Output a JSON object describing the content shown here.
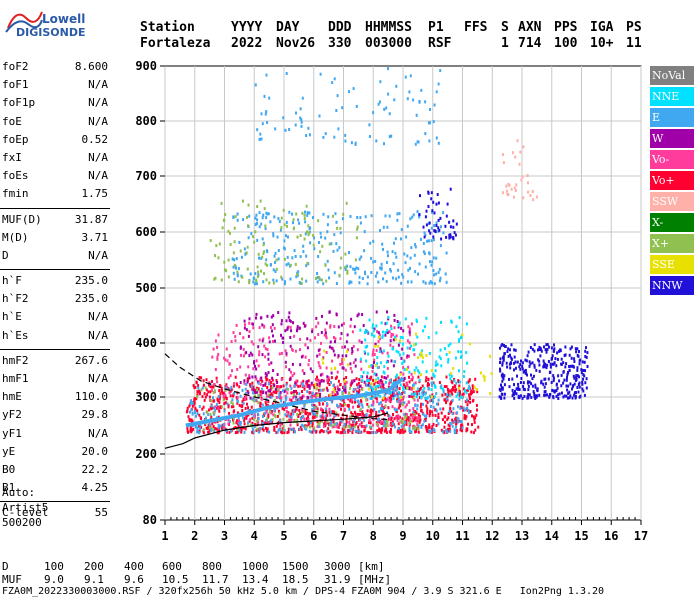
{
  "logo": {
    "line1": "Lowell",
    "line2": "DIGISONDE"
  },
  "header": {
    "labels": [
      "Station",
      "YYYY",
      "DAY",
      "DDD",
      "HHMMSS",
      "P1",
      "FFS",
      "S",
      "AXN",
      "PPS",
      "IGA",
      "PS"
    ],
    "values": [
      "Fortaleza",
      "2022",
      "Nov26",
      "330",
      "003000",
      "RSF",
      "",
      "1",
      "714",
      "100",
      "10+",
      "11"
    ]
  },
  "params": {
    "group1": [
      {
        "label": "foF2",
        "value": "8.600"
      },
      {
        "label": "foF1",
        "value": "N/A"
      },
      {
        "label": "foF1p",
        "value": "N/A"
      },
      {
        "label": "foE",
        "value": "N/A"
      },
      {
        "label": "foEp",
        "value": "0.52"
      },
      {
        "label": "fxI",
        "value": "N/A"
      },
      {
        "label": "foEs",
        "value": "N/A"
      },
      {
        "label": "fmin",
        "value": "1.75"
      }
    ],
    "group2": [
      {
        "label": "MUF(D)",
        "value": "31.87"
      },
      {
        "label": "M(D)",
        "value": "3.71"
      },
      {
        "label": "D",
        "value": "N/A"
      }
    ],
    "group3": [
      {
        "label": "h`F",
        "value": "235.0"
      },
      {
        "label": "h`F2",
        "value": "235.0"
      },
      {
        "label": "h`E",
        "value": "N/A"
      },
      {
        "label": "h`Es",
        "value": "N/A"
      }
    ],
    "group4": [
      {
        "label": "hmF2",
        "value": "267.6"
      },
      {
        "label": "hmF1",
        "value": "N/A"
      },
      {
        "label": "hmE",
        "value": "110.0"
      },
      {
        "label": "yF2",
        "value": "29.8"
      },
      {
        "label": "yF1",
        "value": "N/A"
      },
      {
        "label": "yE",
        "value": "20.0"
      },
      {
        "label": "B0",
        "value": "22.2"
      },
      {
        "label": "B1",
        "value": "4.25"
      }
    ],
    "group5": [
      {
        "label": "C-level",
        "value": "55"
      }
    ]
  },
  "auto": {
    "line1": "Auto:",
    "line2": "Artist5",
    "line3": "500200"
  },
  "legend": [
    {
      "label": "NoVal",
      "color": "#808080"
    },
    {
      "label": "NNE",
      "color": "#00e0ff"
    },
    {
      "label": "E",
      "color": "#40a8f0"
    },
    {
      "label": "W",
      "color": "#a000a8"
    },
    {
      "label": "Vo-",
      "color": "#ff3c9c"
    },
    {
      "label": "Vo+",
      "color": "#ff0030"
    },
    {
      "label": "SSW",
      "color": "#ffb0a8"
    },
    {
      "label": "X-",
      "color": "#008000"
    },
    {
      "label": "X+",
      "color": "#90c050"
    },
    {
      "label": "SSE",
      "color": "#e8e000"
    },
    {
      "label": "NNW",
      "color": "#2010d8"
    }
  ],
  "bottom": {
    "d_label": "D",
    "d_values": [
      "100",
      "200",
      "400",
      "600",
      "800",
      "1000",
      "1500",
      "3000"
    ],
    "d_unit": "[km]",
    "muf_label": "MUF",
    "muf_values": [
      "9.0",
      "9.1",
      "9.6",
      "10.5",
      "11.7",
      "13.4",
      "18.5",
      "31.9"
    ],
    "muf_unit": "[MHz]"
  },
  "footer": "FZA0M_2022330003000.RSF / 320fx256h 50 kHz 5.0 km / DPS-4 FZA0M 904 / 3.9 S 321.6 E   Ion2Png 1.3.20",
  "chart_data": {
    "type": "scatter",
    "xlim": [
      1,
      17
    ],
    "ylim": [
      80,
      900
    ],
    "x_ticks": [
      "1",
      "2",
      "3",
      "4",
      "5",
      "6",
      "7",
      "8",
      "9",
      "10",
      "11",
      "12",
      "13",
      "14",
      "15",
      "16",
      "17"
    ],
    "y_ticks": [
      "80",
      "200",
      "300",
      "400",
      "500",
      "600",
      "700",
      "800",
      "900"
    ],
    "grid": true,
    "legend_position": "right",
    "clusters": [
      {
        "series": "Vo+",
        "x": [
          1.7,
          11.5
        ],
        "y": [
          240,
          340
        ],
        "n": 1100
      },
      {
        "series": "Vo-",
        "x": [
          2.5,
          9.5
        ],
        "y": [
          250,
          440
        ],
        "n": 400
      },
      {
        "series": "W",
        "x": [
          3.5,
          9.2
        ],
        "y": [
          300,
          460
        ],
        "n": 250
      },
      {
        "series": "NNE",
        "x": [
          7.5,
          11.2
        ],
        "y": [
          300,
          450
        ],
        "n": 200
      },
      {
        "series": "E",
        "x": [
          1.8,
          11.2
        ],
        "y": [
          240,
          330
        ],
        "n": 350
      },
      {
        "series": "NNW",
        "x": [
          12.2,
          15.2
        ],
        "y": [
          300,
          400
        ],
        "n": 350
      },
      {
        "series": "X+",
        "x": [
          2.0,
          9.5
        ],
        "y": [
          245,
          320
        ],
        "n": 120
      },
      {
        "series": "SSE",
        "x": [
          6.0,
          12.0
        ],
        "y": [
          300,
          420
        ],
        "n": 60
      },
      {
        "series": "E",
        "x": [
          3.2,
          10.5
        ],
        "y": [
          510,
          640
        ],
        "n": 300
      },
      {
        "series": "NNW",
        "x": [
          9.5,
          10.8
        ],
        "y": [
          590,
          680
        ],
        "n": 50
      },
      {
        "series": "X+",
        "x": [
          2.5,
          7.5
        ],
        "y": [
          510,
          660
        ],
        "n": 120
      },
      {
        "series": "E",
        "x": [
          4.0,
          10.5
        ],
        "y": [
          760,
          900
        ],
        "n": 90
      },
      {
        "series": "SSW",
        "x": [
          12.3,
          13.5
        ],
        "y": [
          660,
          770
        ],
        "n": 30
      }
    ],
    "profile_curve": {
      "x": [
        1.0,
        1.6,
        2.0,
        3.0,
        4.0,
        5.0,
        6.0,
        7.0,
        8.0,
        8.5
      ],
      "y": [
        210,
        218,
        228,
        242,
        250,
        255,
        258,
        261,
        265,
        272
      ]
    },
    "dashed_curve": {
      "x": [
        1.0,
        1.5,
        2.2,
        3.0,
        4.0,
        5.0,
        6.0,
        7.0,
        8.0,
        8.6
      ],
      "y": [
        380,
        355,
        330,
        315,
        300,
        288,
        275,
        268,
        262,
        260
      ]
    },
    "trace_curve": {
      "x": [
        1.7,
        2.5,
        3.5,
        4.5,
        5.5,
        6.5,
        7.5,
        8.5,
        9.0
      ],
      "y": [
        250,
        258,
        268,
        282,
        290,
        297,
        302,
        312,
        335
      ]
    }
  }
}
